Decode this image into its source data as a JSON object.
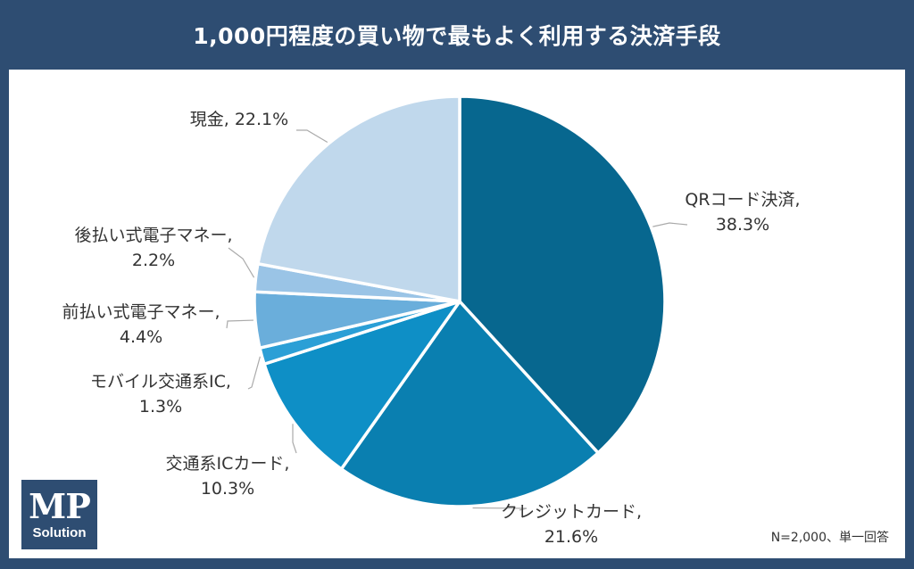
{
  "chart_data": {
    "type": "pie",
    "title": "1,000円程度の買い物で最もよく利用する決済手段",
    "slices": [
      {
        "label": "QRコード決済,",
        "value": 38.3,
        "value_text": "38.3%",
        "color": "#07678f"
      },
      {
        "label": "クレジットカード,",
        "value": 21.6,
        "value_text": "21.6%",
        "color": "#0a7fb0"
      },
      {
        "label": "交通系ICカード,",
        "value": 10.3,
        "value_text": "10.3%",
        "color": "#0e8fc6"
      },
      {
        "label": "モバイル交通系IC,",
        "value": 1.3,
        "value_text": "1.3%",
        "color": "#2b9fd6"
      },
      {
        "label": "前払い式電子マネー,",
        "value": 4.4,
        "value_text": "4.4%",
        "color": "#6aaedb"
      },
      {
        "label": "後払い式電子マネー,",
        "value": 2.2,
        "value_text": "2.2%",
        "color": "#9ac4e6"
      },
      {
        "label": "現金,",
        "value": 22.1,
        "value_text": "22.1%",
        "color": "#c0d8ec"
      }
    ],
    "start": "12 o'clock",
    "direction": "clockwise"
  },
  "note": "N=2,000、単一回答",
  "logo": {
    "line1": "MP",
    "line2": "Solution"
  },
  "colors": {
    "frame": "#2e4d72",
    "panel": "#ffffff",
    "leader": "#aaaaaa",
    "separator": "#ffffff"
  }
}
